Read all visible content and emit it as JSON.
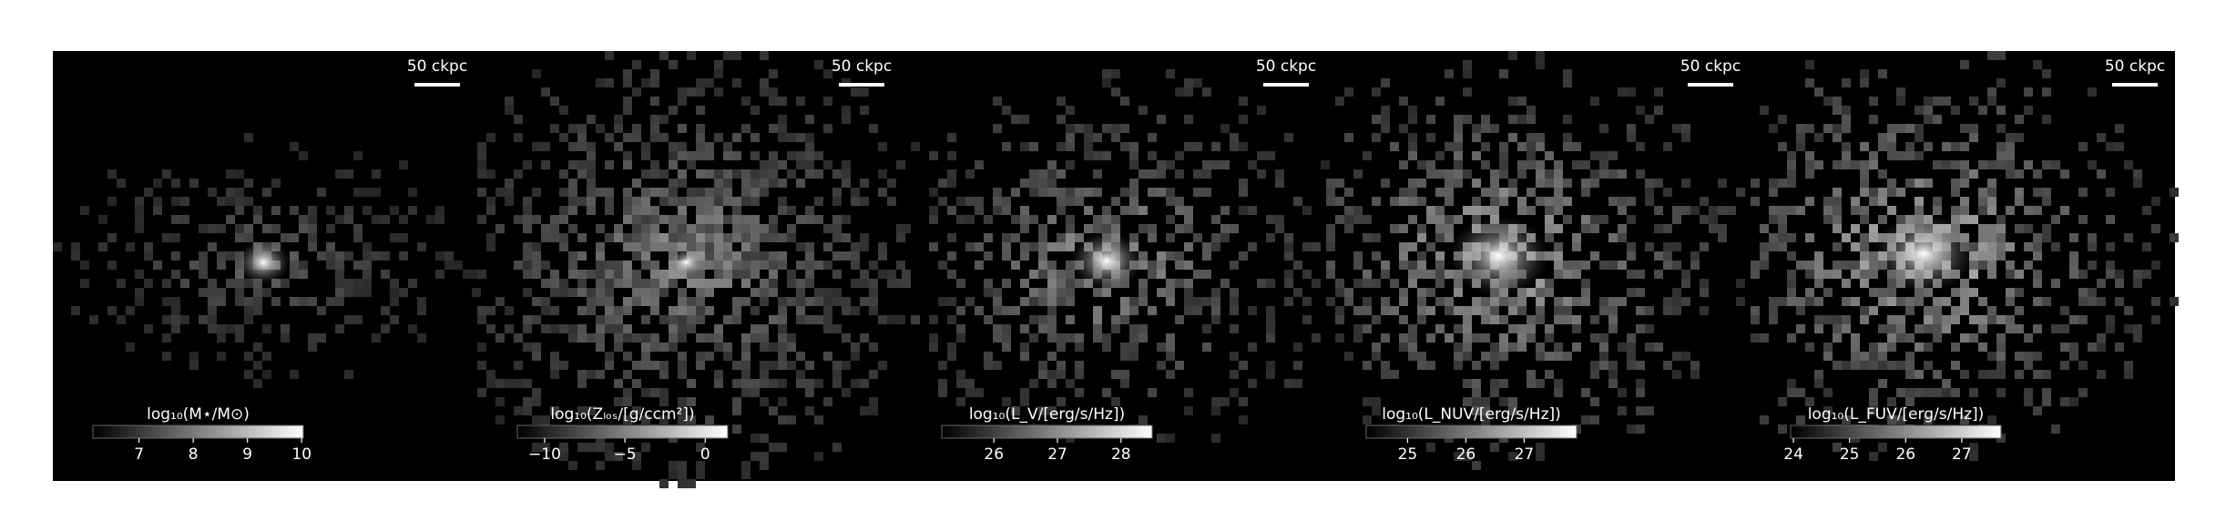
{
  "chart_data": [
    {
      "type": "image",
      "scale_bar": "50 ckpc",
      "colorbar": {
        "label": "log₁₀(M⋆/M⊙)",
        "lim": [
          6.15,
          10.03
        ],
        "ticks": [
          7,
          8,
          9,
          10
        ],
        "cmap": "gray"
      }
    },
    {
      "type": "image",
      "scale_bar": "50 ckpc",
      "colorbar": {
        "label": "log₁₀(Zₗₒₛ/[g/ccm²])",
        "lim": [
          -11.7,
          1.4
        ],
        "ticks": [
          {
            "value": -10,
            "label": "−10"
          },
          {
            "value": -5,
            "label": "−5"
          },
          0
        ],
        "cmap": "gray"
      }
    },
    {
      "type": "image",
      "scale_bar": "50 ckpc",
      "colorbar": {
        "label": "log₁₀(L_V/[erg/s/Hz])",
        "lim": [
          25.18,
          28.49
        ],
        "ticks": [
          26,
          27,
          28
        ],
        "cmap": "gray"
      }
    },
    {
      "type": "image",
      "scale_bar": "50 ckpc",
      "colorbar": {
        "label": "log₁₀(L_NUV/[erg/s/Hz])",
        "lim": [
          24.29,
          27.9
        ],
        "ticks": [
          25,
          26,
          27
        ],
        "cmap": "gray"
      }
    },
    {
      "type": "image",
      "scale_bar": "50 ckpc",
      "colorbar": {
        "label": "log₁₀(L_FUV/[erg/s/Hz])",
        "lim": [
          23.95,
          27.7
        ],
        "ticks": [
          24,
          25,
          26,
          27
        ],
        "cmap": "gray"
      }
    }
  ]
}
